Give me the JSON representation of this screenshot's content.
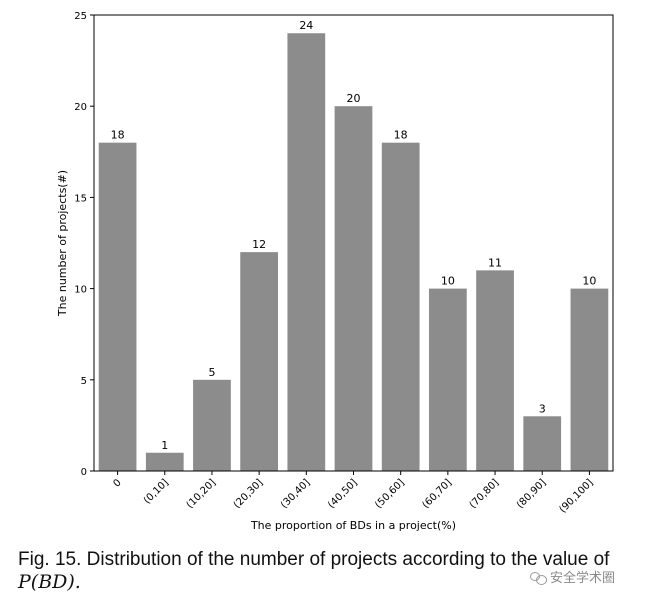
{
  "chart_data": {
    "type": "bar",
    "categories": [
      "0",
      "(0,10]",
      "(10,20]",
      "(20,30]",
      "(30,40]",
      "(40,50]",
      "(50,60]",
      "(60,70]",
      "(70,80]",
      "(80,90]",
      "(90,100]"
    ],
    "values": [
      18,
      1,
      5,
      12,
      24,
      20,
      18,
      10,
      11,
      3,
      10
    ],
    "xlabel": "The proportion of BDs in a project(%)",
    "ylabel": "The number of projects(#)",
    "ylim": [
      0,
      25
    ],
    "yticks": [
      "0",
      "5",
      "10",
      "15",
      "20",
      "25"
    ],
    "bar_color": "#8c8c8c",
    "grid": false
  },
  "caption": {
    "text": "Fig. 15. Distribution of the number of projects according to the value of",
    "math": "P(BD)."
  },
  "watermark": {
    "text": "安全学术圈",
    "icon": "wechat-icon"
  }
}
